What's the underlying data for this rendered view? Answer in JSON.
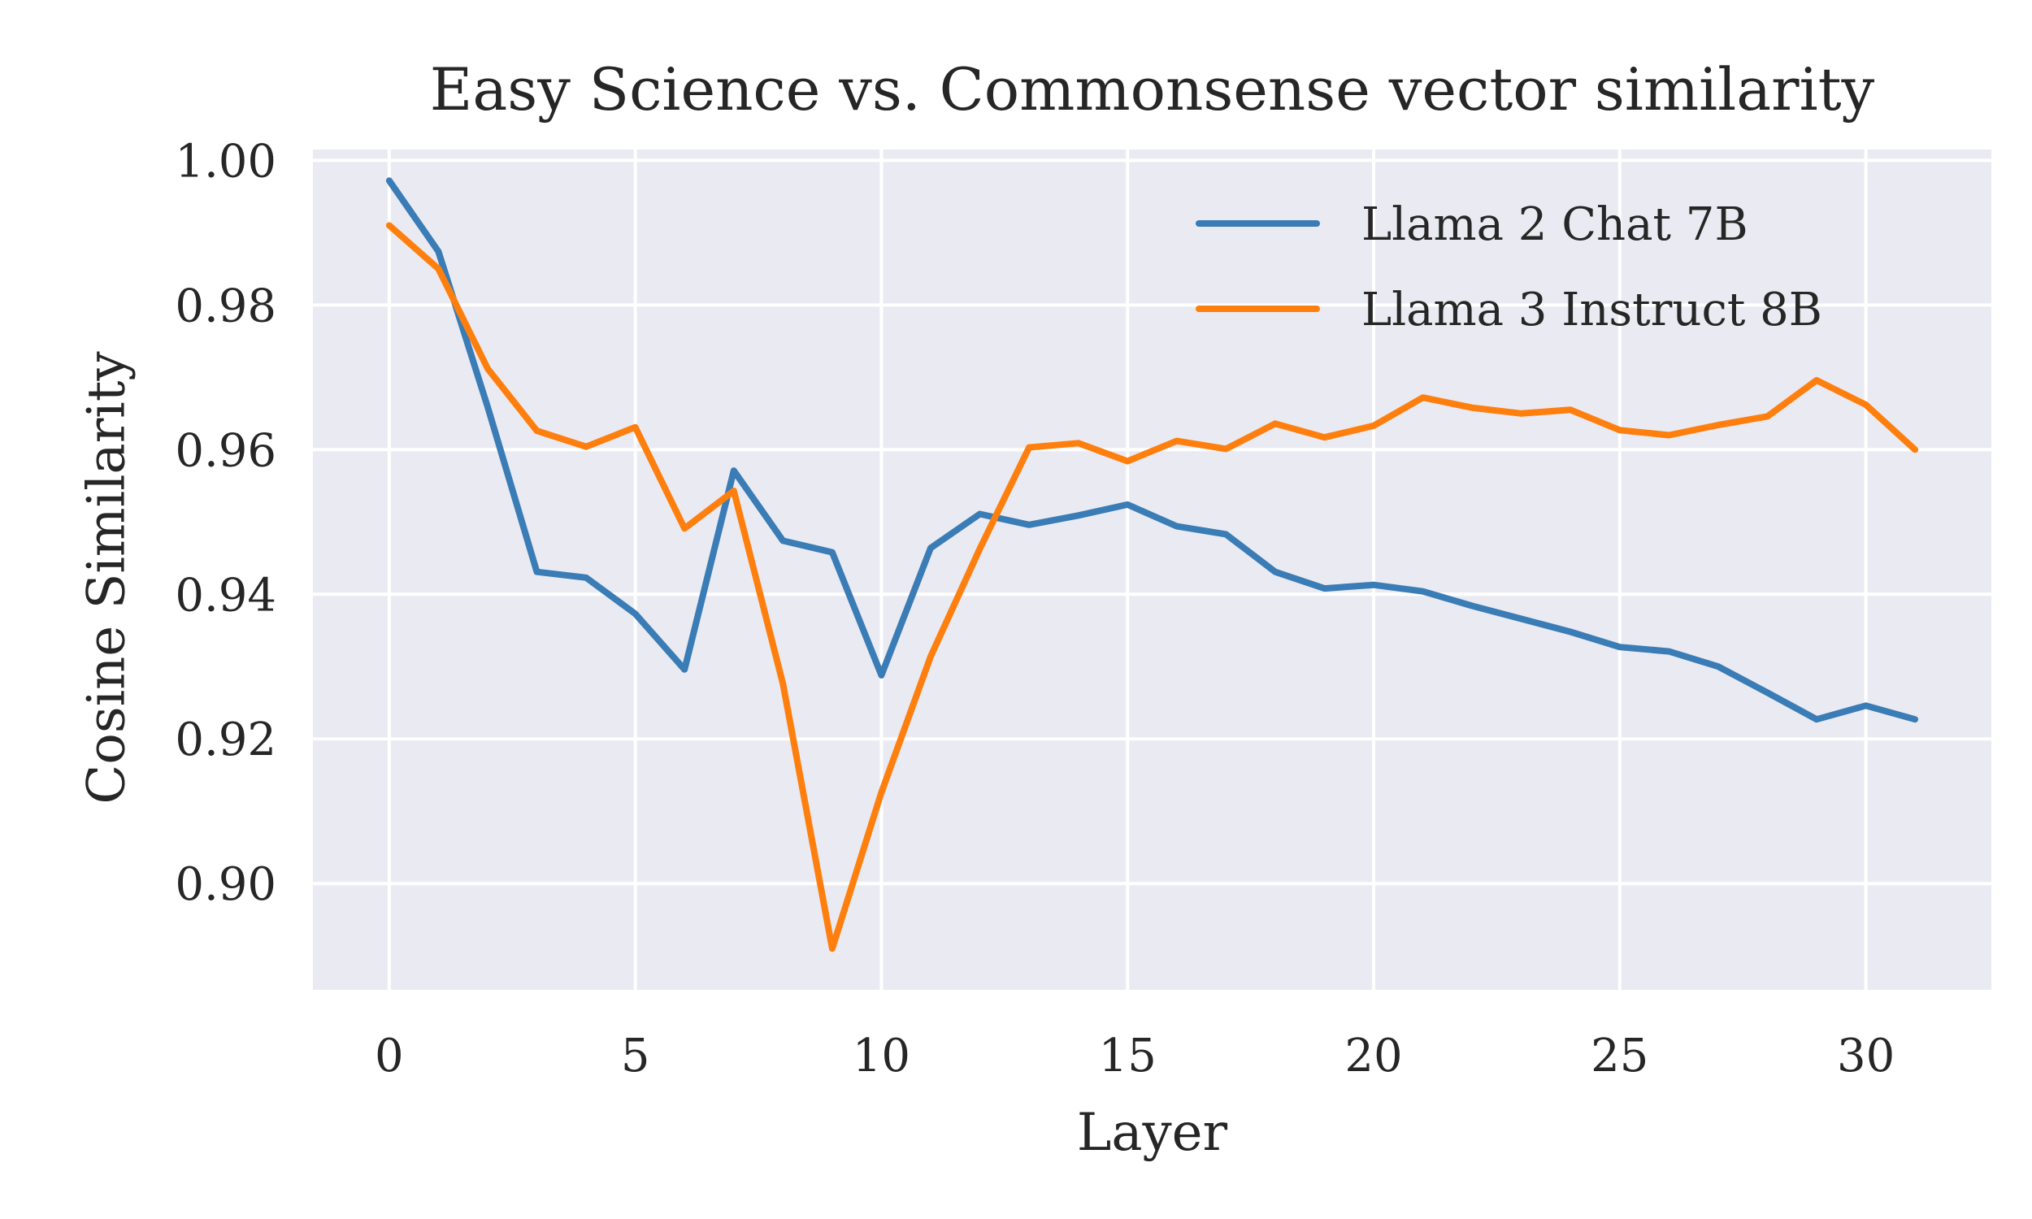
{
  "chart_data": {
    "type": "line",
    "title": "Easy Science vs. Commonsense vector similarity",
    "xlabel": "Layer",
    "ylabel": "Cosine Similarity",
    "xlim": [
      -1.55,
      32.55
    ],
    "ylim": [
      0.8853,
      1.0015
    ],
    "xticks": [
      0,
      5,
      10,
      15,
      20,
      25,
      30
    ],
    "xtick_labels": [
      "0",
      "5",
      "10",
      "15",
      "20",
      "25",
      "30"
    ],
    "yticks": [
      0.9,
      0.92,
      0.94,
      0.96,
      0.98,
      1.0
    ],
    "ytick_labels": [
      "0.90",
      "0.92",
      "0.94",
      "0.96",
      "0.98",
      "1.00"
    ],
    "grid": true,
    "background": "#eaeaf2",
    "legend_position": "top-right",
    "x": [
      0,
      1,
      2,
      3,
      4,
      5,
      6,
      7,
      8,
      9,
      10,
      11,
      12,
      13,
      14,
      15,
      16,
      17,
      18,
      19,
      20,
      21,
      22,
      23,
      24,
      25,
      26,
      27,
      28,
      29,
      30,
      31
    ],
    "series": [
      {
        "name": "Llama 2 Chat 7B",
        "color": "#3a7cb5",
        "values": [
          0.9972,
          0.9874,
          0.9659,
          0.9431,
          0.9423,
          0.9373,
          0.9296,
          0.9571,
          0.9474,
          0.9458,
          0.9288,
          0.9464,
          0.9511,
          0.9496,
          0.9509,
          0.9524,
          0.9494,
          0.9483,
          0.9431,
          0.9408,
          0.9413,
          0.9404,
          0.9384,
          0.9366,
          0.9348,
          0.9327,
          0.9321,
          0.93,
          0.9264,
          0.9227,
          0.9246,
          0.9227
        ]
      },
      {
        "name": "Llama 3 Instruct 8B",
        "color": "#ff7f0e",
        "values": [
          0.991,
          0.985,
          0.9712,
          0.9626,
          0.9604,
          0.9631,
          0.9491,
          0.9543,
          0.9276,
          0.891,
          0.9126,
          0.9314,
          0.9463,
          0.9603,
          0.9609,
          0.9584,
          0.9612,
          0.9601,
          0.9636,
          0.9617,
          0.9633,
          0.9672,
          0.9658,
          0.965,
          0.9655,
          0.9627,
          0.962,
          0.9634,
          0.9646,
          0.9696,
          0.9662,
          0.96
        ]
      }
    ]
  }
}
